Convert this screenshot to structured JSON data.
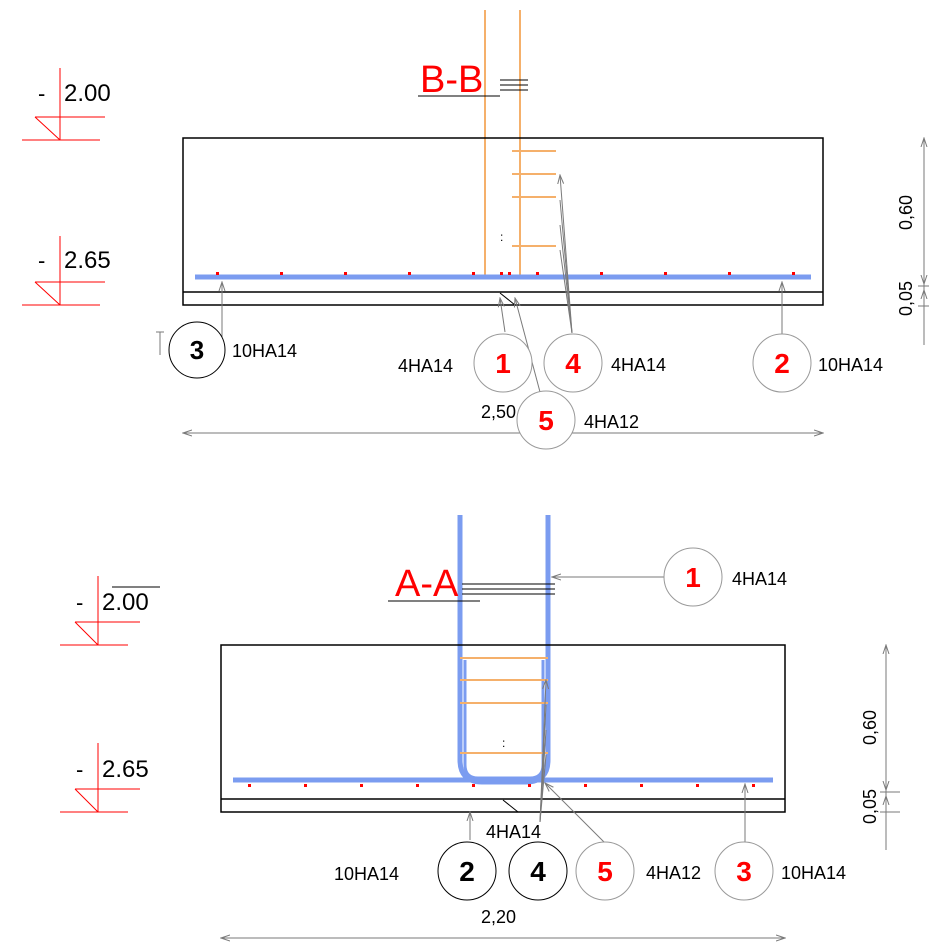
{
  "colors": {
    "annotation_red": "#ff0000",
    "bar_blue": "#7b9cf0",
    "stirrup_orange": "#f5b06b",
    "line_black": "#000000",
    "leader_gray": "#7a7a7a"
  },
  "section_bb": {
    "title": "B-B",
    "levels": [
      {
        "sign": "-",
        "value": "2.00"
      },
      {
        "sign": "-",
        "value": "2.65"
      }
    ],
    "dims": {
      "height": "0,60",
      "cover": "0,05",
      "width": "2,50"
    },
    "marks": [
      {
        "num": "3",
        "label": "10HA14"
      },
      {
        "num": "1",
        "label": "4HA14"
      },
      {
        "num": "4",
        "label": "4HA14"
      },
      {
        "num": "2",
        "label": "10HA14"
      },
      {
        "num": "5",
        "label": "4HA12"
      }
    ],
    "colon": ":"
  },
  "section_aa": {
    "title": "A-A",
    "levels": [
      {
        "sign": "-",
        "value": "2.00"
      },
      {
        "sign": "-",
        "value": "2.65"
      }
    ],
    "dims": {
      "height": "0,60",
      "cover": "0,05",
      "width": "2,20"
    },
    "marks": [
      {
        "num": "1",
        "label": "4HA14"
      },
      {
        "num": "2",
        "label": "10HA14"
      },
      {
        "num": "4",
        "label": "4HA14"
      },
      {
        "num": "5",
        "label": "4HA12"
      },
      {
        "num": "3",
        "label": "10HA14"
      }
    ],
    "colon": ":"
  }
}
